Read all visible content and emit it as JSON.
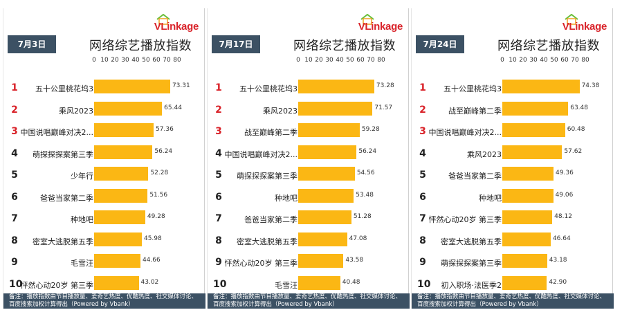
{
  "brand": {
    "logo_text": "VLinkage",
    "accent": "#d9232a",
    "header_color": "#3c5164",
    "bar_color": "#fbb714"
  },
  "note": "备注：播放指数由节目播放量、爱奇艺热度、优酷热度、社交媒体讨论、百度搜索加权计算得出（Powered by Vbank）",
  "chart_data": [
    {
      "type": "bar",
      "orientation": "horizontal",
      "date": "7月3日",
      "title": "网络综艺播放指数",
      "xlim": [
        0,
        80
      ],
      "ticks": [
        "0",
        "10",
        "20",
        "30",
        "40",
        "50",
        "60",
        "70",
        "80"
      ],
      "ranks": [
        "1",
        "2",
        "3",
        "4",
        "5",
        "6",
        "7",
        "8",
        "9",
        "10"
      ],
      "categories": [
        "五十公里桃花坞3",
        "乘风2023",
        "中国说唱巅峰对决2...",
        "萌探探探案第三季",
        "少年行",
        "爸爸当家第二季",
        "种地吧",
        "密室大逃脱第五季",
        "毛雪汪",
        "怦然心动20岁 第三季"
      ],
      "values": [
        73.31,
        65.44,
        57.36,
        56.24,
        52.28,
        51.56,
        49.28,
        45.98,
        44.66,
        43.02
      ],
      "value_labels": [
        "73.31",
        "65.44",
        "57.36",
        "56.24",
        "52.28",
        "51.56",
        "49.28",
        "45.98",
        "44.66",
        "43.02"
      ]
    },
    {
      "type": "bar",
      "orientation": "horizontal",
      "date": "7月17日",
      "title": "网络综艺播放指数",
      "xlim": [
        0,
        80
      ],
      "ticks": [
        "0",
        "10",
        "20",
        "30",
        "40",
        "50",
        "60",
        "70",
        "80"
      ],
      "ranks": [
        "1",
        "2",
        "3",
        "4",
        "5",
        "6",
        "7",
        "8",
        "9",
        "10"
      ],
      "categories": [
        "五十公里桃花坞3",
        "乘风2023",
        "战至巅峰第二季",
        "中国说唱巅峰对决2...",
        "萌探探探案第三季",
        "种地吧",
        "爸爸当家第二季",
        "密室大逃脱第五季",
        "怦然心动20岁 第三季",
        "毛雪汪"
      ],
      "values": [
        73.28,
        71.57,
        59.28,
        56.24,
        54.56,
        53.48,
        51.28,
        47.08,
        43.58,
        40.48
      ],
      "value_labels": [
        "73.28",
        "71.57",
        "59.28",
        "56.24",
        "54.56",
        "53.48",
        "51.28",
        "47.08",
        "43.58",
        "40.48"
      ]
    },
    {
      "type": "bar",
      "orientation": "horizontal",
      "date": "7月24日",
      "title": "网络综艺播放指数",
      "xlim": [
        0,
        80
      ],
      "ticks": [
        "0",
        "10",
        "20",
        "30",
        "40",
        "50",
        "60",
        "70",
        "80"
      ],
      "ranks": [
        "1",
        "2",
        "3",
        "4",
        "5",
        "6",
        "7",
        "8",
        "9",
        "10"
      ],
      "categories": [
        "五十公里桃花坞3",
        "战至巅峰第二季",
        "中国说唱巅峰对决2...",
        "乘风2023",
        "爸爸当家第二季",
        "种地吧",
        "怦然心动20岁 第三季",
        "密室大逃脱第五季",
        "萌探探探案第三季",
        "初入职场·法医季2"
      ],
      "values": [
        74.38,
        63.48,
        60.48,
        57.62,
        49.36,
        49.06,
        48.12,
        46.64,
        43.18,
        42.9
      ],
      "value_labels": [
        "74.38",
        "63.48",
        "60.48",
        "57.62",
        "49.36",
        "49.06",
        "48.12",
        "46.64",
        "43.18",
        "42.90"
      ]
    }
  ]
}
